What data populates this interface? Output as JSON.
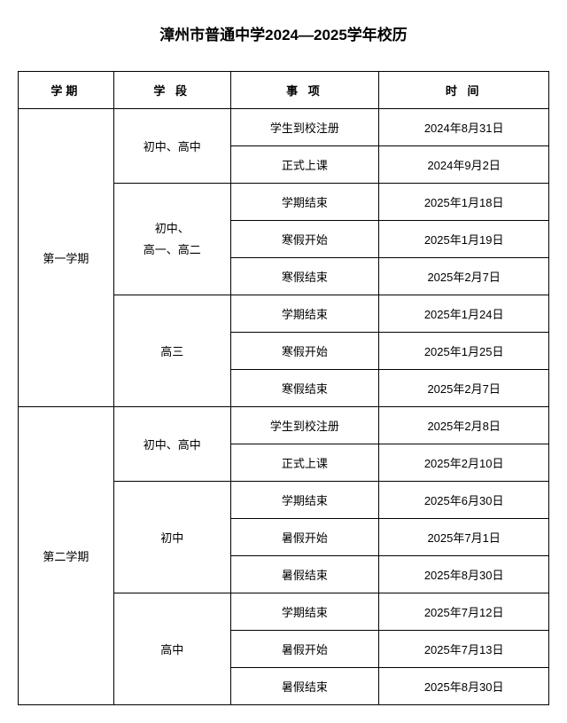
{
  "title": "漳州市普通中学2024—2025学年校历",
  "headers": {
    "semester": "学期",
    "stage": "学 段",
    "item": "事 项",
    "time": "时 间"
  },
  "semesters": [
    {
      "name": "第一学期",
      "rowspan": 8,
      "stages": [
        {
          "name": "初中、高中",
          "rowspan": 2,
          "rows": [
            {
              "item": "学生到校注册",
              "time": "2024年8月31日"
            },
            {
              "item": "正式上课",
              "time": "2024年9月2日"
            }
          ]
        },
        {
          "name_line1": "初中、",
          "name_line2": "高一、高二",
          "rowspan": 3,
          "multiline": true,
          "rows": [
            {
              "item": "学期结束",
              "time": "2025年1月18日"
            },
            {
              "item": "寒假开始",
              "time": "2025年1月19日"
            },
            {
              "item": "寒假结束",
              "time": "2025年2月7日"
            }
          ]
        },
        {
          "name": "高三",
          "rowspan": 3,
          "rows": [
            {
              "item": "学期结束",
              "time": "2025年1月24日"
            },
            {
              "item": "寒假开始",
              "time": "2025年1月25日"
            },
            {
              "item": "寒假结束",
              "time": "2025年2月7日"
            }
          ]
        }
      ]
    },
    {
      "name": "第二学期",
      "rowspan": 8,
      "stages": [
        {
          "name": "初中、高中",
          "rowspan": 2,
          "rows": [
            {
              "item": "学生到校注册",
              "time": "2025年2月8日"
            },
            {
              "item": "正式上课",
              "time": "2025年2月10日"
            }
          ]
        },
        {
          "name": "初中",
          "rowspan": 3,
          "rows": [
            {
              "item": "学期结束",
              "time": "2025年6月30日"
            },
            {
              "item": "暑假开始",
              "time": "2025年7月1日"
            },
            {
              "item": "暑假结束",
              "time": "2025年8月30日"
            }
          ]
        },
        {
          "name": "高中",
          "rowspan": 3,
          "rows": [
            {
              "item": "学期结束",
              "time": "2025年7月12日"
            },
            {
              "item": "暑假开始",
              "time": "2025年7月13日"
            },
            {
              "item": "暑假结束",
              "time": "2025年8月30日"
            }
          ]
        }
      ]
    }
  ],
  "colors": {
    "background": "#ffffff",
    "border": "#000000",
    "text": "#000000"
  },
  "typography": {
    "title_fontsize": 17,
    "cell_fontsize": 13,
    "title_weight": "bold"
  }
}
